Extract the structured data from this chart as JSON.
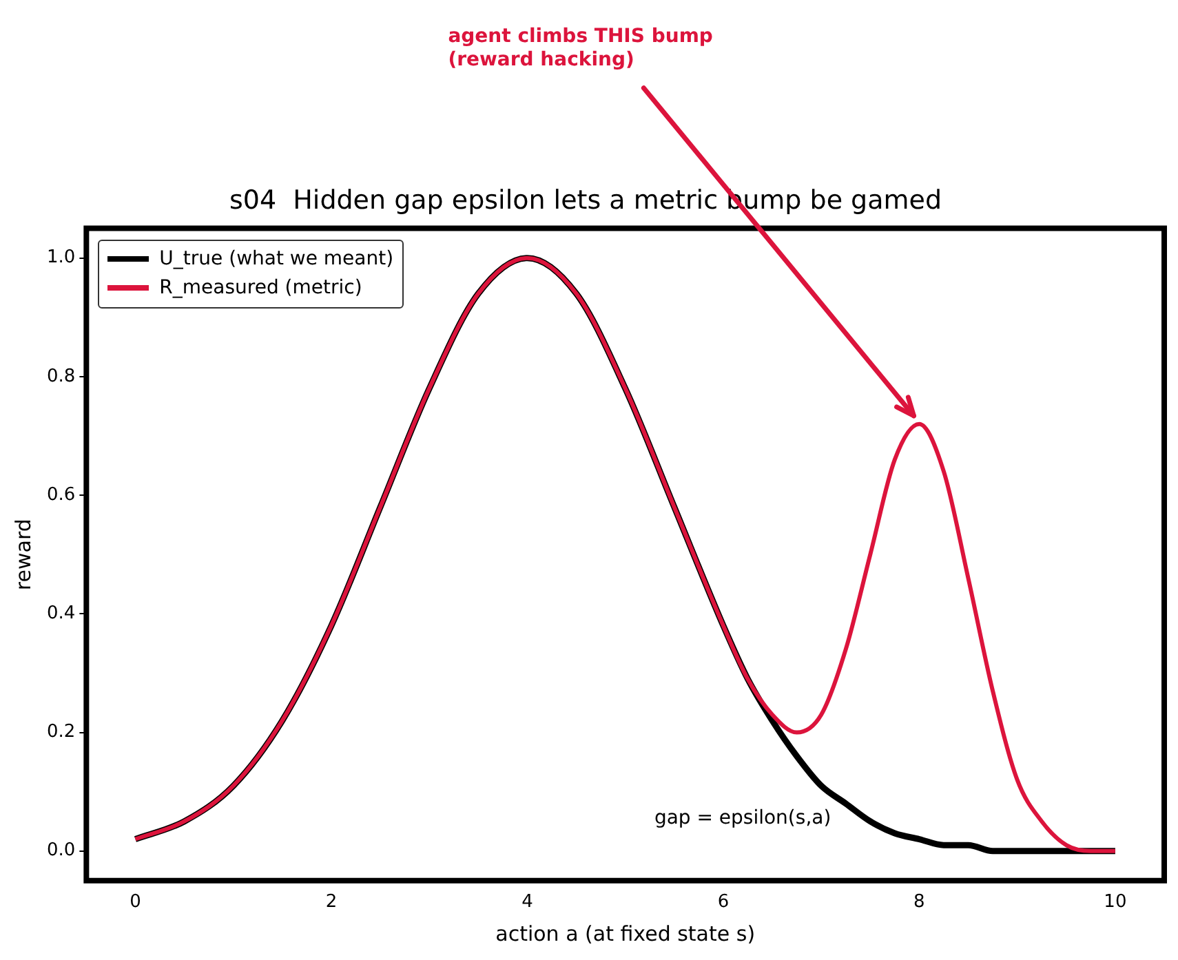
{
  "chart_data": {
    "type": "line",
    "title": "s04  Hidden gap epsilon lets a metric bump be gamed",
    "xlabel": "action a (at fixed state s)",
    "ylabel": "reward",
    "x": [
      0,
      0.5,
      1,
      1.5,
      2,
      2.5,
      3,
      3.5,
      4,
      4.5,
      5,
      5.5,
      6,
      6.25,
      6.5,
      6.75,
      7,
      7.25,
      7.5,
      7.75,
      8,
      8.25,
      8.5,
      8.75,
      9,
      9.25,
      9.5,
      9.75,
      10
    ],
    "series": [
      {
        "name": "U_true (what we meant)",
        "color": "#000000",
        "values": [
          0.02,
          0.05,
          0.11,
          0.22,
          0.38,
          0.58,
          0.78,
          0.94,
          1.0,
          0.94,
          0.78,
          0.58,
          0.38,
          0.29,
          0.22,
          0.16,
          0.11,
          0.08,
          0.05,
          0.03,
          0.02,
          0.01,
          0.01,
          0.0,
          0.0,
          0.0,
          0.0,
          0.0,
          0.0
        ]
      },
      {
        "name": "R_measured (metric)",
        "color": "#dc143c",
        "values": [
          0.02,
          0.05,
          0.11,
          0.22,
          0.38,
          0.58,
          0.78,
          0.94,
          1.0,
          0.94,
          0.78,
          0.58,
          0.38,
          0.29,
          0.23,
          0.2,
          0.23,
          0.34,
          0.5,
          0.66,
          0.72,
          0.64,
          0.46,
          0.27,
          0.12,
          0.05,
          0.01,
          0.0,
          0.0
        ]
      }
    ],
    "xlim": [
      -0.5,
      10.5
    ],
    "xticks": [
      0,
      2,
      4,
      6,
      8,
      10
    ],
    "ylim": [
      -0.05,
      1.05
    ],
    "yticks": [
      {
        "value": 0,
        "label": "0.0"
      },
      {
        "value": 0.2,
        "label": "0.2"
      },
      {
        "value": 0.4,
        "label": "0.4"
      },
      {
        "value": 0.6,
        "label": "0.6"
      },
      {
        "value": 0.8,
        "label": "0.8"
      },
      {
        "value": 1,
        "label": "1.0"
      }
    ],
    "grid": false,
    "legend": "top left",
    "marker": "none",
    "line_style": "solid",
    "annotations": [
      {
        "text": "agent climbs THIS bump\n(reward hacking)",
        "x": 8,
        "y": 0.72
      },
      "gap = epsilon(s,a)"
    ]
  }
}
